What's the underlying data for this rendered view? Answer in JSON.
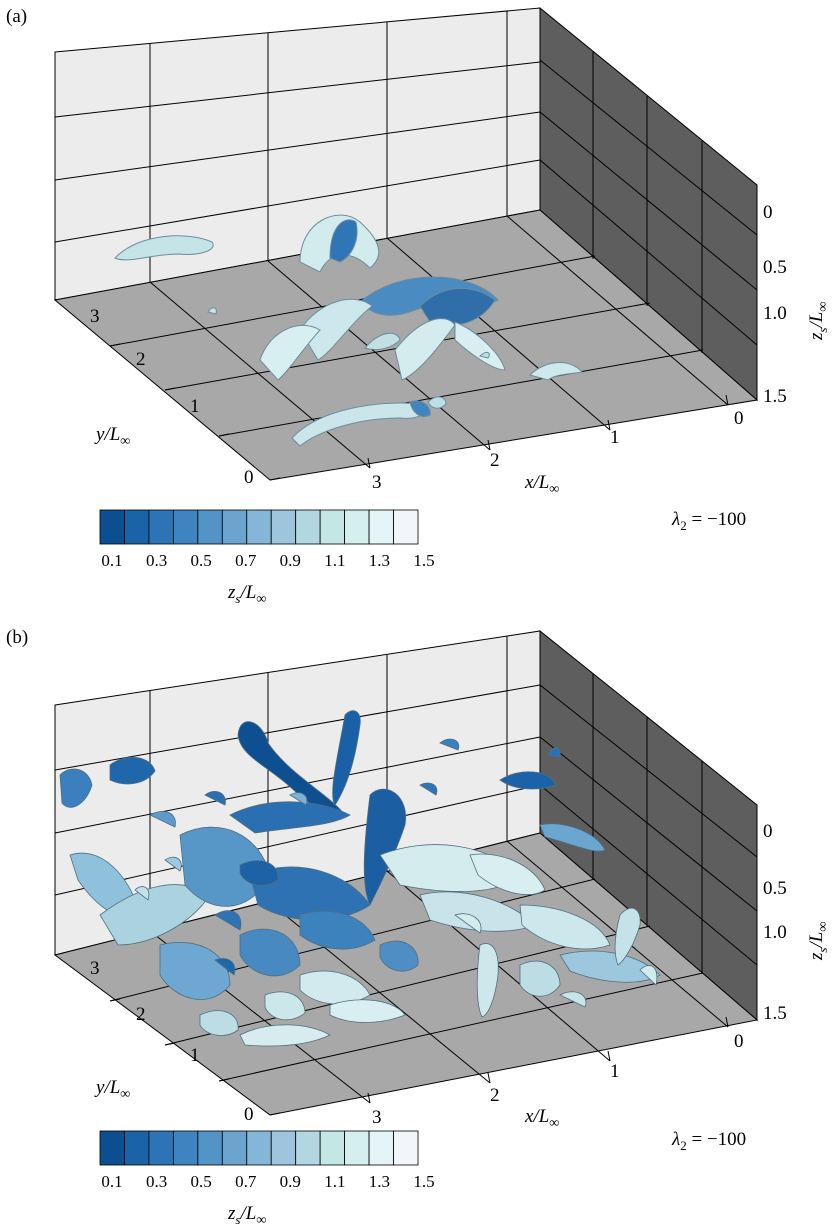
{
  "panels": [
    {
      "label": "(a)",
      "x_axis": {
        "label_main": "x/L",
        "label_sub": "∞",
        "ticks": [
          "3",
          "2",
          "1",
          "0"
        ]
      },
      "y_axis": {
        "label_main": "y/L",
        "label_sub": "∞",
        "ticks": [
          "3",
          "2",
          "1",
          "0"
        ]
      },
      "z_axis": {
        "label_main": "z",
        "label_sub_s": "s",
        "label_over": "/L",
        "label_sub": "∞",
        "ticks": [
          "0",
          "0.5",
          "1.0",
          "1.5"
        ]
      },
      "annotation": {
        "symbol": "λ",
        "sub": "2",
        "rest": " = −100"
      },
      "colorbar": {
        "tick_labels": [
          "0.1",
          "0.3",
          "0.5",
          "0.7",
          "0.9",
          "1.1",
          "1.3",
          "1.5"
        ],
        "label_main": "z",
        "label_sub_s": "s",
        "label_over": "/L",
        "label_sub": "∞",
        "colors": [
          "#0b4f91",
          "#1a63a8",
          "#2c74b6",
          "#3e84c0",
          "#5394c7",
          "#6ba4cf",
          "#84b6d8",
          "#9dc6de",
          "#b2d7e0",
          "#c4e6e4",
          "#d5eeee",
          "#e5f4f6",
          "#f2f6fb"
        ]
      }
    },
    {
      "label": "(b)",
      "x_axis": {
        "label_main": "x/L",
        "label_sub": "∞",
        "ticks": [
          "3",
          "2",
          "1",
          "0"
        ]
      },
      "y_axis": {
        "label_main": "y/L",
        "label_sub": "∞",
        "ticks": [
          "3",
          "2",
          "1",
          "0"
        ]
      },
      "z_axis": {
        "label_main": "z",
        "label_sub_s": "s",
        "label_over": "/L",
        "label_sub": "∞",
        "ticks": [
          "0",
          "0.5",
          "1.0",
          "1.5"
        ]
      },
      "annotation": {
        "symbol": "λ",
        "sub": "2",
        "rest": " = −100"
      },
      "colorbar": {
        "tick_labels": [
          "0.1",
          "0.3",
          "0.5",
          "0.7",
          "0.9",
          "1.1",
          "1.3",
          "1.5"
        ],
        "label_main": "z",
        "label_sub_s": "s",
        "label_over": "/L",
        "label_sub": "∞",
        "colors": [
          "#0b4f91",
          "#1a63a8",
          "#2c74b6",
          "#3e84c0",
          "#5394c7",
          "#6ba4cf",
          "#84b6d8",
          "#9dc6de",
          "#b2d7e0",
          "#c4e6e4",
          "#d5eeee",
          "#e5f4f6",
          "#f2f6fb"
        ]
      }
    }
  ]
}
